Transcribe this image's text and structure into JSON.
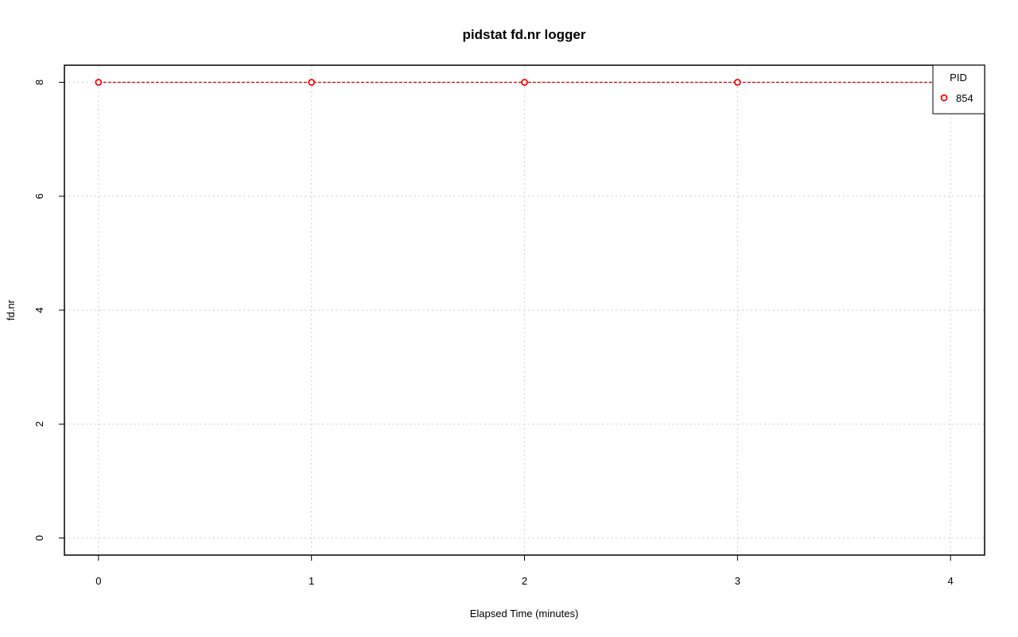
{
  "chart_data": {
    "type": "line",
    "title": "pidstat fd.nr logger",
    "xlabel": "Elapsed Time (minutes)",
    "ylabel": "fd.nr",
    "x": [
      0,
      1,
      2,
      3,
      4
    ],
    "xlim": [
      -0.16,
      4.16
    ],
    "ylim": [
      -0.3,
      8.3
    ],
    "xticks": [
      0,
      1,
      2,
      3,
      4
    ],
    "yticks": [
      0,
      2,
      4,
      6,
      8
    ],
    "grid": true,
    "legend": {
      "title": "PID",
      "placement": "top-right"
    },
    "series": [
      {
        "name": "854",
        "color": "#ff0000",
        "line_color": "#cc0000",
        "marker": "open-circle",
        "values": [
          8,
          8,
          8,
          8,
          8
        ]
      }
    ]
  }
}
